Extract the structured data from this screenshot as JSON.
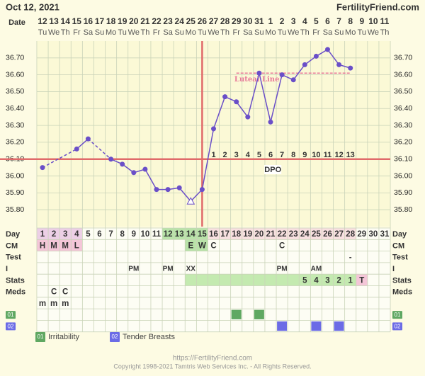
{
  "header": {
    "date": "Oct 12, 2021",
    "site": "FertilityFriend.com"
  },
  "chart_data": {
    "type": "line",
    "x_label": "Date",
    "categories": [
      "12",
      "13",
      "14",
      "15",
      "16",
      "17",
      "18",
      "19",
      "20",
      "21",
      "22",
      "23",
      "24",
      "25",
      "26",
      "27",
      "28",
      "29",
      "30",
      "31",
      "1",
      "2",
      "3",
      "4",
      "5",
      "6",
      "7",
      "8",
      "9",
      "10",
      "11"
    ],
    "weekdays": [
      "Tu",
      "We",
      "Th",
      "Fr",
      "Sa",
      "Su",
      "Mo",
      "Tu",
      "We",
      "Th",
      "Fr",
      "Sa",
      "Su",
      "Mo",
      "Tu",
      "We",
      "Th",
      "Fr",
      "Sa",
      "Su",
      "Mo",
      "Tu",
      "We",
      "Th",
      "Fr",
      "Sa",
      "Su",
      "Mo",
      "Tu",
      "We",
      "Th"
    ],
    "values": [
      36.05,
      null,
      null,
      36.16,
      36.22,
      null,
      36.1,
      36.07,
      36.02,
      36.04,
      35.92,
      35.92,
      35.93,
      35.85,
      35.92,
      36.28,
      36.47,
      36.44,
      36.35,
      36.61,
      36.32,
      36.6,
      36.57,
      36.66,
      36.71,
      36.75,
      36.66,
      36.64,
      null,
      null,
      null
    ],
    "markers": [
      "dot",
      null,
      null,
      "dot",
      "dot",
      null,
      "dot",
      "dot",
      "dot",
      "dot",
      "dot",
      "dot",
      "dot",
      "open-triangle",
      "dot",
      "dot",
      "dot",
      "dot",
      "dot",
      "dot",
      "dot",
      "dot",
      "dot",
      "dot",
      "dot",
      "dot",
      "dot",
      "dot",
      null,
      null,
      null
    ],
    "color": "#6a4fc8",
    "ylim": [
      35.7,
      36.8
    ],
    "yticks": [
      {
        "value": 35.8,
        "label": "35.80"
      },
      {
        "value": 35.9,
        "label": "35.90"
      },
      {
        "value": 36.0,
        "label": "36.00"
      },
      {
        "value": 36.1,
        "label": "36.10"
      },
      {
        "value": 36.2,
        "label": "36.20"
      },
      {
        "value": 36.3,
        "label": "36.30"
      },
      {
        "value": 36.4,
        "label": "36.40"
      },
      {
        "value": 36.5,
        "label": "36.50"
      },
      {
        "value": 36.6,
        "label": "36.60"
      },
      {
        "value": 36.7,
        "label": "36.70"
      }
    ],
    "grid": true,
    "coverline": 36.1,
    "coverline_color": "#e06a6a",
    "luteal_line": {
      "label": "Luteal Line",
      "value": 36.61,
      "color": "#e87a9a"
    },
    "dpo_label": "DPO",
    "dpo": [
      null,
      null,
      null,
      null,
      null,
      null,
      null,
      null,
      null,
      null,
      null,
      null,
      null,
      null,
      null,
      1,
      2,
      3,
      4,
      5,
      6,
      7,
      8,
      9,
      10,
      11,
      12,
      13,
      null,
      null,
      null
    ],
    "rows": [
      {
        "label": "Day",
        "cells": [
          1,
          2,
          3,
          4,
          5,
          6,
          7,
          8,
          9,
          10,
          11,
          12,
          13,
          14,
          15,
          16,
          17,
          18,
          19,
          20,
          21,
          22,
          23,
          24,
          25,
          26,
          27,
          28,
          29,
          30,
          31
        ],
        "bg": [
          "#eccfe6",
          "#eccfe6",
          "#eccfe6",
          "#eccfe6",
          null,
          null,
          null,
          null,
          null,
          null,
          null,
          "#b9e3a9",
          "#b9e3a9",
          "#b9e3a9",
          "#b9e3a9",
          "#f8e0e0",
          "#f8e0e0",
          "#f8e0e0",
          "#f8e0e0",
          "#f8e0e0",
          "#f8e0e0",
          "#f8e0e0",
          "#f8e0e0",
          "#f8e0e0",
          "#f8e0e0",
          "#f8e0e0",
          "#f8e0e0",
          "#f8e0e0",
          null,
          null,
          null
        ]
      },
      {
        "label": "CM",
        "cells": [
          "H",
          "M",
          "M",
          "L",
          null,
          null,
          null,
          null,
          null,
          null,
          null,
          null,
          null,
          "E",
          "W",
          "C",
          null,
          null,
          null,
          null,
          null,
          "C",
          null,
          null,
          null,
          null,
          null,
          null,
          null,
          null,
          null
        ],
        "bg": [
          "#f4c6d8",
          "#f4c6d8",
          "#f4c6d8",
          "#f4c6d8",
          null,
          null,
          null,
          null,
          null,
          null,
          null,
          null,
          null,
          "#b9e3a9",
          "#b9e3a9",
          null,
          null,
          null,
          null,
          null,
          null,
          null,
          null,
          null,
          null,
          null,
          null,
          null,
          null,
          null,
          null
        ]
      },
      {
        "label": "Test",
        "cells": [
          null,
          null,
          null,
          null,
          null,
          null,
          null,
          null,
          null,
          null,
          null,
          null,
          null,
          null,
          null,
          null,
          null,
          null,
          null,
          null,
          null,
          null,
          null,
          null,
          null,
          null,
          null,
          "-",
          null,
          null,
          null
        ]
      },
      {
        "label": "I",
        "cells": [
          null,
          null,
          null,
          null,
          null,
          null,
          null,
          null,
          "PM",
          null,
          null,
          "PM",
          null,
          "XX",
          null,
          null,
          null,
          null,
          null,
          null,
          null,
          "PM",
          null,
          null,
          "AM",
          null,
          null,
          null,
          null,
          null,
          null
        ]
      },
      {
        "label": "Stats",
        "cells": [
          null,
          null,
          null,
          null,
          null,
          null,
          null,
          null,
          null,
          null,
          null,
          null,
          null,
          null,
          null,
          null,
          null,
          null,
          null,
          null,
          null,
          null,
          null,
          5,
          4,
          3,
          2,
          1,
          "T",
          null,
          null
        ],
        "bg": [
          null,
          null,
          null,
          null,
          null,
          null,
          null,
          null,
          null,
          null,
          null,
          null,
          null,
          "#c4eab0",
          "#c4eab0",
          "#c4eab0",
          "#c4eab0",
          "#c4eab0",
          "#c4eab0",
          "#c4eab0",
          "#c4eab0",
          "#c4eab0",
          "#c4eab0",
          "#c4eab0",
          "#c4eab0",
          "#c4eab0",
          "#c4eab0",
          "#c4eab0",
          "#f4c6d8",
          null,
          null
        ]
      },
      {
        "label": "Meds",
        "cells": [
          null,
          "C",
          "C",
          null,
          null,
          null,
          null,
          null,
          null,
          null,
          null,
          null,
          null,
          null,
          null,
          null,
          null,
          null,
          null,
          null,
          null,
          null,
          null,
          null,
          null,
          null,
          null,
          null,
          null,
          null,
          null
        ]
      },
      {
        "label": null,
        "cells": [
          "m",
          "m",
          "m",
          null,
          null,
          null,
          null,
          null,
          null,
          null,
          null,
          null,
          null,
          null,
          null,
          null,
          null,
          null,
          null,
          null,
          null,
          null,
          null,
          null,
          null,
          null,
          null,
          null,
          null,
          null,
          null
        ]
      }
    ],
    "symptoms": [
      {
        "code": "01",
        "label": "Irritability",
        "color": "#5fa862",
        "marks": [
          null,
          null,
          null,
          null,
          null,
          null,
          null,
          null,
          null,
          null,
          null,
          null,
          null,
          null,
          null,
          null,
          null,
          1,
          null,
          1,
          null,
          null,
          null,
          null,
          null,
          null,
          null,
          null,
          null,
          null,
          null
        ]
      },
      {
        "code": "02",
        "label": "Tender Breasts",
        "color": "#6b6be6",
        "marks": [
          null,
          null,
          null,
          null,
          null,
          null,
          null,
          null,
          null,
          null,
          null,
          null,
          null,
          null,
          null,
          null,
          null,
          null,
          null,
          null,
          null,
          1,
          null,
          null,
          1,
          null,
          1,
          null,
          null,
          null,
          null
        ]
      }
    ]
  },
  "footer": {
    "url": "https://FertilityFriend.com",
    "copyright": "Copyright 1998-2021 Tamtris Web Services Inc. - All Rights Reserved."
  }
}
